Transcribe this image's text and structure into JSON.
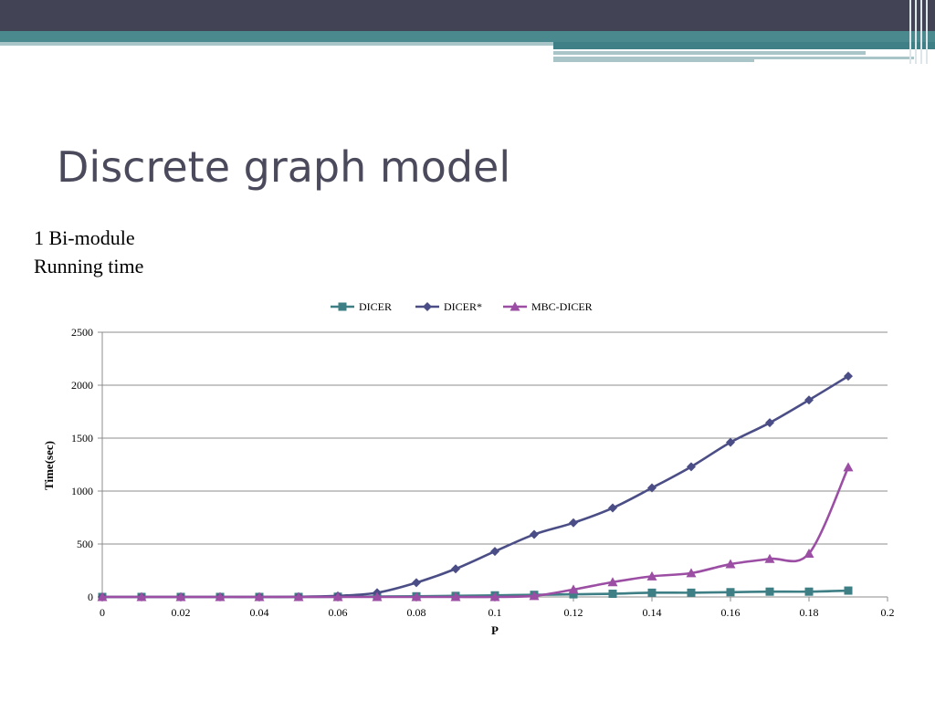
{
  "slide": {
    "title": "Discrete graph model",
    "subtitle_lines": [
      "1 Bi-module",
      "Running time"
    ]
  },
  "chart_data": {
    "type": "line",
    "xlabel": "P",
    "ylabel": "Time(sec)",
    "xlim": [
      0,
      0.2
    ],
    "ylim": [
      0,
      2500
    ],
    "x_ticks": [
      "0",
      "0.02",
      "0.04",
      "0.06",
      "0.08",
      "0.1",
      "0.12",
      "0.14",
      "0.16",
      "0.18",
      "0.2"
    ],
    "y_ticks": [
      "0",
      "500",
      "1000",
      "1500",
      "2000",
      "2500"
    ],
    "grid": "horizontal",
    "legend_position": "top",
    "x": [
      0,
      0.01,
      0.02,
      0.03,
      0.04,
      0.05,
      0.06,
      0.07,
      0.08,
      0.09,
      0.1,
      0.11,
      0.12,
      0.13,
      0.14,
      0.15,
      0.16,
      0.17,
      0.18,
      0.19
    ],
    "series": [
      {
        "name": "DICER",
        "color": "#3d7f85",
        "marker": "square",
        "values": [
          0,
          0,
          0,
          0,
          0,
          0,
          2,
          4,
          6,
          10,
          15,
          20,
          25,
          30,
          40,
          40,
          45,
          50,
          50,
          60
        ]
      },
      {
        "name": "DICER*",
        "color": "#4b4e86",
        "marker": "diamond",
        "values": [
          0,
          0,
          0,
          0,
          0,
          2,
          10,
          40,
          135,
          265,
          430,
          590,
          700,
          840,
          1030,
          1230,
          1460,
          1645,
          1860,
          2085
        ]
      },
      {
        "name": "MBC-DICER",
        "color": "#9b4ea3",
        "marker": "triangle",
        "values": [
          0,
          0,
          0,
          0,
          0,
          0,
          0,
          0,
          0,
          0,
          0,
          10,
          70,
          140,
          195,
          225,
          310,
          360,
          410,
          1225
        ]
      }
    ]
  }
}
